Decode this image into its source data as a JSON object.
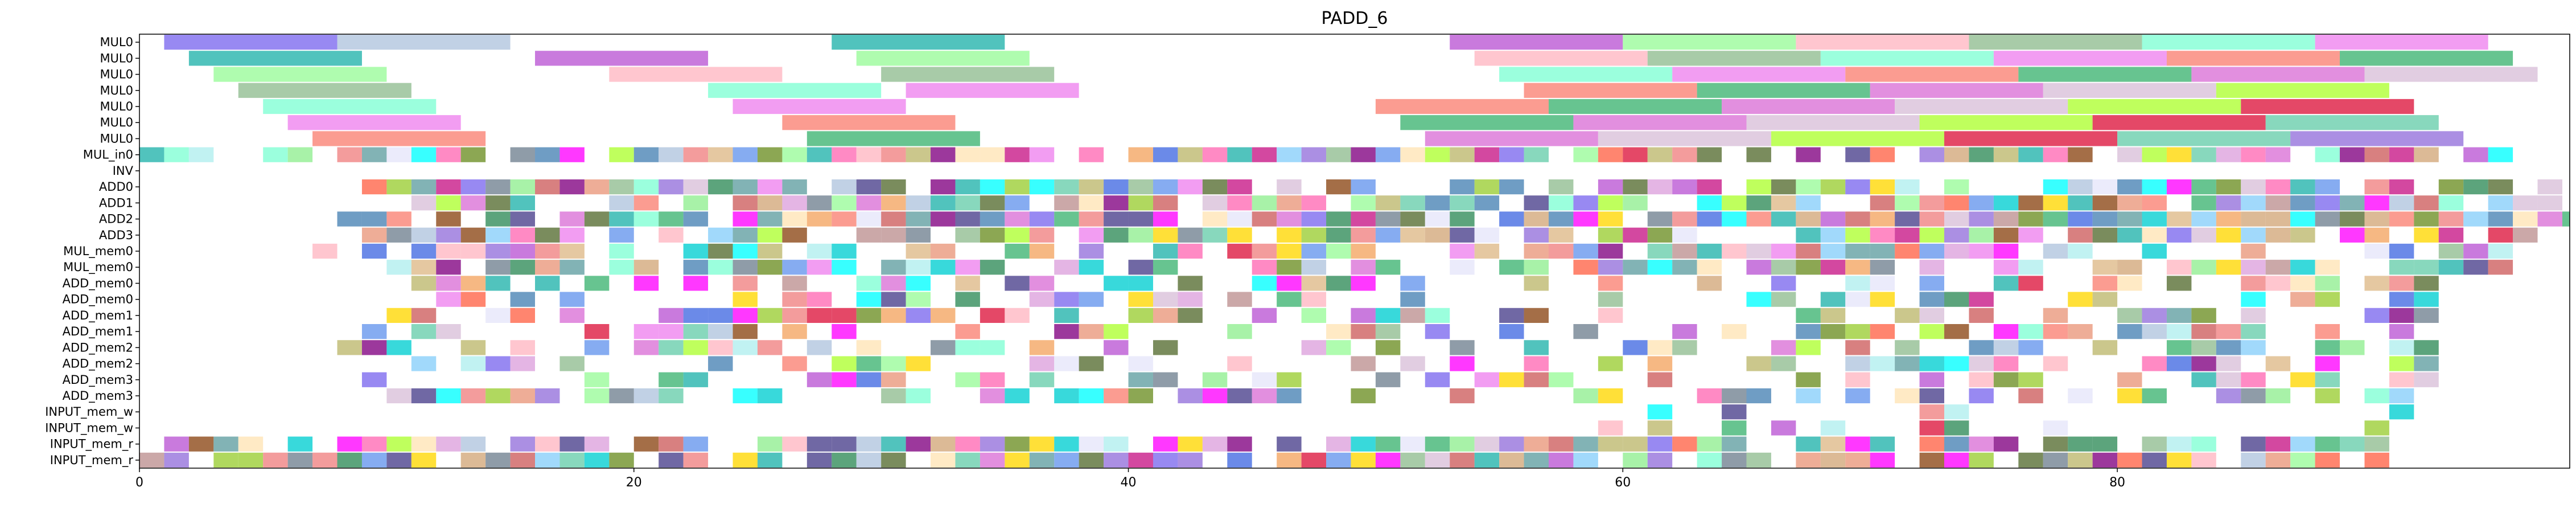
{
  "chart_data": {
    "type": "gantt",
    "title": "PADD_6",
    "xlabel": "",
    "ylabel": "",
    "xlim": [
      0,
      98.3
    ],
    "x_ticks": [
      0,
      20,
      40,
      60,
      80
    ],
    "grid": false,
    "rows": [
      "MUL0",
      "MUL0",
      "MUL0",
      "MUL0",
      "MUL0",
      "MUL0",
      "MUL0",
      "MUL_in0",
      "INV",
      "ADD0",
      "ADD1",
      "ADD2",
      "ADD3",
      "MUL_mem0",
      "MUL_mem0",
      "ADD_mem0",
      "ADD_mem0",
      "ADD_mem1",
      "ADD_mem1",
      "ADD_mem2",
      "ADD_mem2",
      "ADD_mem3",
      "ADD_mem3",
      "INPUT_mem_w",
      "INPUT_mem_w",
      "INPUT_mem_r",
      "INPUT_mem_r"
    ],
    "palette": [
      "#7b68ee",
      "#4682b4",
      "#d2a679",
      "#5f9ea0",
      "#9acd32",
      "#66cdaa",
      "#ee82ee",
      "#b0c4de",
      "#cd5c5c",
      "#90ee90",
      "#6b8e23",
      "#bdb76b",
      "#9370db",
      "#fa8072",
      "#20b2aa",
      "#ffd700",
      "#483d8b",
      "#dda0dd",
      "#87cefa",
      "#f08080",
      "#3cb371",
      "#ba55d3",
      "#ffe4b5",
      "#00ced1",
      "#f4a460",
      "#556b2f",
      "#afeeee",
      "#da70d6",
      "#98fb98",
      "#800080",
      "#ff69b4",
      "#4169e1",
      "#e9967a",
      "#2e8b57",
      "#d8bfd8",
      "#ffb6c1",
      "#ff00ff",
      "#00ffff",
      "#c71585",
      "#deb887",
      "#708090",
      "#adff2f",
      "#8fbc8f",
      "#6495ed",
      "#ff6347",
      "#8b4513",
      "#e6e6fa",
      "#bc8f8f",
      "#dc143c",
      "#7fffd4"
    ],
    "mul_tasks": [
      {
        "row": 0,
        "start": 1,
        "end": 8
      },
      {
        "row": 0,
        "start": 8,
        "end": 15
      },
      {
        "row": 0,
        "start": 28,
        "end": 35
      },
      {
        "row": 0,
        "start": 53,
        "end": 60
      },
      {
        "row": 0,
        "start": 60,
        "end": 67
      },
      {
        "row": 0,
        "start": 67,
        "end": 74
      },
      {
        "row": 0,
        "start": 74,
        "end": 81
      },
      {
        "row": 0,
        "start": 81,
        "end": 88
      },
      {
        "row": 0,
        "start": 88,
        "end": 95
      },
      {
        "row": 1,
        "start": 2,
        "end": 9
      },
      {
        "row": 1,
        "start": 16,
        "end": 23
      },
      {
        "row": 1,
        "start": 29,
        "end": 36
      },
      {
        "row": 1,
        "start": 54,
        "end": 61
      },
      {
        "row": 1,
        "start": 61,
        "end": 68
      },
      {
        "row": 1,
        "start": 68,
        "end": 75
      },
      {
        "row": 1,
        "start": 75,
        "end": 82
      },
      {
        "row": 1,
        "start": 82,
        "end": 89
      },
      {
        "row": 1,
        "start": 89,
        "end": 96
      },
      {
        "row": 2,
        "start": 3,
        "end": 10
      },
      {
        "row": 2,
        "start": 19,
        "end": 26
      },
      {
        "row": 2,
        "start": 30,
        "end": 37
      },
      {
        "row": 2,
        "start": 55,
        "end": 62
      },
      {
        "row": 2,
        "start": 62,
        "end": 69
      },
      {
        "row": 2,
        "start": 69,
        "end": 76
      },
      {
        "row": 2,
        "start": 76,
        "end": 83
      },
      {
        "row": 2,
        "start": 83,
        "end": 90
      },
      {
        "row": 2,
        "start": 90,
        "end": 97
      },
      {
        "row": 3,
        "start": 4,
        "end": 11
      },
      {
        "row": 3,
        "start": 23,
        "end": 30
      },
      {
        "row": 3,
        "start": 31,
        "end": 38
      },
      {
        "row": 3,
        "start": 56,
        "end": 63
      },
      {
        "row": 3,
        "start": 63,
        "end": 70
      },
      {
        "row": 3,
        "start": 70,
        "end": 77
      },
      {
        "row": 3,
        "start": 77,
        "end": 84
      },
      {
        "row": 3,
        "start": 84,
        "end": 91
      },
      {
        "row": 4,
        "start": 5,
        "end": 12
      },
      {
        "row": 4,
        "start": 24,
        "end": 31
      },
      {
        "row": 4,
        "start": 50,
        "end": 57
      },
      {
        "row": 4,
        "start": 57,
        "end": 64
      },
      {
        "row": 4,
        "start": 64,
        "end": 71
      },
      {
        "row": 4,
        "start": 71,
        "end": 78
      },
      {
        "row": 4,
        "start": 78,
        "end": 85
      },
      {
        "row": 4,
        "start": 85,
        "end": 92
      },
      {
        "row": 5,
        "start": 6,
        "end": 13
      },
      {
        "row": 5,
        "start": 26,
        "end": 33
      },
      {
        "row": 5,
        "start": 51,
        "end": 58
      },
      {
        "row": 5,
        "start": 58,
        "end": 65
      },
      {
        "row": 5,
        "start": 65,
        "end": 72
      },
      {
        "row": 5,
        "start": 72,
        "end": 79
      },
      {
        "row": 5,
        "start": 79,
        "end": 86
      },
      {
        "row": 5,
        "start": 86,
        "end": 93
      },
      {
        "row": 6,
        "start": 7,
        "end": 14
      },
      {
        "row": 6,
        "start": 27,
        "end": 34
      },
      {
        "row": 6,
        "start": 52,
        "end": 59
      },
      {
        "row": 6,
        "start": 59,
        "end": 66
      },
      {
        "row": 6,
        "start": 66,
        "end": 73
      },
      {
        "row": 6,
        "start": 73,
        "end": 80
      },
      {
        "row": 6,
        "start": 80,
        "end": 87
      },
      {
        "row": 6,
        "start": 87,
        "end": 94
      }
    ],
    "sparse_rows": [
      {
        "row": 7,
        "start": 0,
        "end": 96,
        "density": 0.85
      },
      {
        "row": 9,
        "start": 9,
        "end": 98,
        "density": 0.8
      },
      {
        "row": 10,
        "start": 9,
        "end": 98,
        "density": 0.85
      },
      {
        "row": 11,
        "start": 8,
        "end": 98.3,
        "density": 0.85
      },
      {
        "row": 12,
        "start": 9,
        "end": 97,
        "density": 0.8
      },
      {
        "row": 13,
        "start": 7,
        "end": 98,
        "density": 0.7
      },
      {
        "row": 14,
        "start": 8,
        "end": 96,
        "density": 0.6
      },
      {
        "row": 15,
        "start": 9,
        "end": 93,
        "density": 0.6
      },
      {
        "row": 16,
        "start": 9,
        "end": 93,
        "density": 0.6
      },
      {
        "row": 17,
        "start": 9,
        "end": 93,
        "density": 0.55
      },
      {
        "row": 18,
        "start": 9,
        "end": 93,
        "density": 0.5
      },
      {
        "row": 19,
        "start": 8,
        "end": 93,
        "density": 0.5
      },
      {
        "row": 20,
        "start": 10,
        "end": 93,
        "density": 0.5
      },
      {
        "row": 21,
        "start": 9,
        "end": 93,
        "density": 0.5
      },
      {
        "row": 22,
        "start": 10,
        "end": 92,
        "density": 0.55
      },
      {
        "row": 23,
        "start": 58,
        "end": 93,
        "density": 0.3
      },
      {
        "row": 24,
        "start": 59,
        "end": 93,
        "density": 0.3
      },
      {
        "row": 25,
        "start": 0,
        "end": 91,
        "density": 0.85
      },
      {
        "row": 26,
        "start": 0,
        "end": 91,
        "density": 0.85
      }
    ]
  }
}
